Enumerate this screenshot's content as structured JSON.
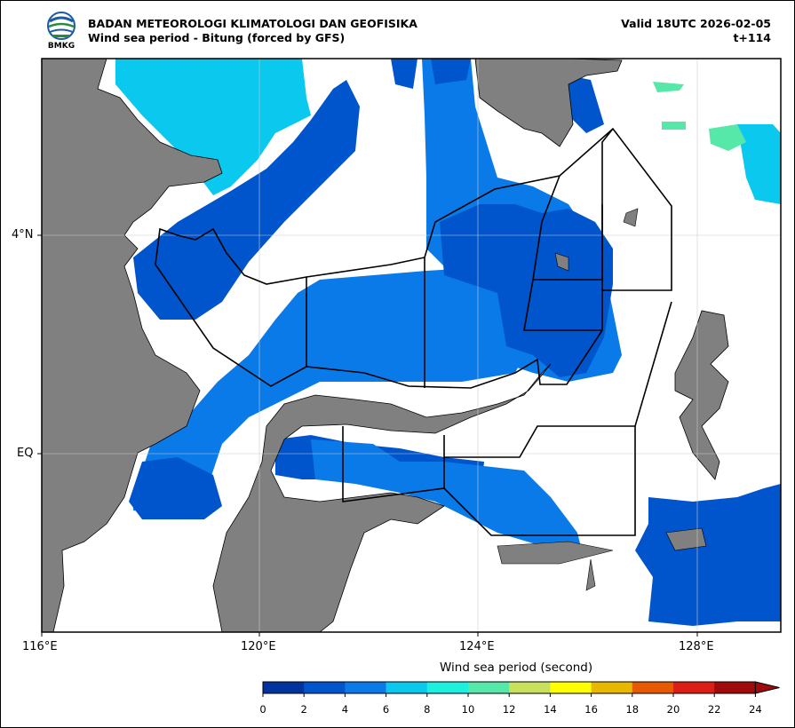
{
  "header": {
    "agency": "BADAN METEOROLOGI KLIMATOLOGI DAN GEOFISIKA",
    "subtitle": "Wind sea period - Bitung (forced by GFS)",
    "valid": "Valid 18UTC 2026-02-05",
    "step": "t+114",
    "logo_text": "BMKG"
  },
  "axes": {
    "lon_ticks": [
      "116°E",
      "120°E",
      "124°E",
      "128°E"
    ],
    "lat_ticks": [
      "4°N",
      "EQ"
    ]
  },
  "colorbar": {
    "title": "Wind sea period (second)",
    "ticks": [
      "0",
      "2",
      "4",
      "6",
      "8",
      "10",
      "12",
      "14",
      "16",
      "18",
      "20",
      "22",
      "24"
    ],
    "colors": [
      "#0033a0",
      "#0055cc",
      "#0a7ae8",
      "#0ac8ee",
      "#1ef0e0",
      "#55e8a8",
      "#c8e05a",
      "#ffff00",
      "#e8b800",
      "#e85a00",
      "#dc1e14",
      "#a00a0a"
    ],
    "extend": "max"
  },
  "colors": {
    "land": "#808080",
    "sea_0_2": "#0033a0",
    "sea_2_4": "#0055cc",
    "sea_4_6": "#0a7ae8",
    "sea_6_8": "#0ac8ee",
    "sea_8_10": "#1ef0e0",
    "sea_10_12": "#55e8a8"
  }
}
